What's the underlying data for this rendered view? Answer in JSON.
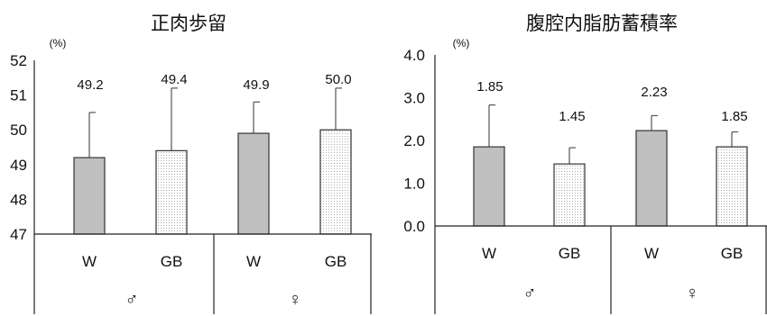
{
  "chart_data": [
    {
      "type": "bar",
      "title": "正肉歩留",
      "unit": "(%)",
      "ylim": [
        47,
        52
      ],
      "yticks": [
        "47",
        "48",
        "49",
        "50",
        "51",
        "52"
      ],
      "categories": [
        "W",
        "GB",
        "W",
        "GB"
      ],
      "groups": [
        "♂",
        "♀"
      ],
      "values": [
        49.2,
        49.4,
        49.9,
        50.0
      ],
      "value_labels": [
        "49.2",
        "49.4",
        "49.9",
        "50.0"
      ],
      "error_plus": [
        1.3,
        1.8,
        0.9,
        1.2
      ],
      "bar_styles": [
        "solid-gray",
        "dotted",
        "solid-gray",
        "dotted"
      ],
      "grid": false,
      "legend": "none"
    },
    {
      "type": "bar",
      "title": "腹腔内脂肪蓄積率",
      "unit": "(%)",
      "ylim": [
        0,
        4
      ],
      "yticks": [
        "0.0",
        "1.0",
        "2.0",
        "3.0",
        "4.0"
      ],
      "categories": [
        "W",
        "GB",
        "W",
        "GB"
      ],
      "groups": [
        "♂",
        "♀"
      ],
      "values": [
        1.85,
        1.45,
        2.23,
        1.85
      ],
      "value_labels": [
        "1.85",
        "1.45",
        "2.23",
        "1.85"
      ],
      "error_plus": [
        0.98,
        0.38,
        0.35,
        0.35
      ],
      "bar_styles": [
        "solid-gray",
        "dotted",
        "solid-gray",
        "dotted"
      ],
      "grid": false,
      "legend": "none"
    }
  ],
  "colors": {
    "bar_fill": "#c0c0c0",
    "bar_edge": "#333333",
    "dot": "#9a9a9a",
    "error": "#555555"
  }
}
